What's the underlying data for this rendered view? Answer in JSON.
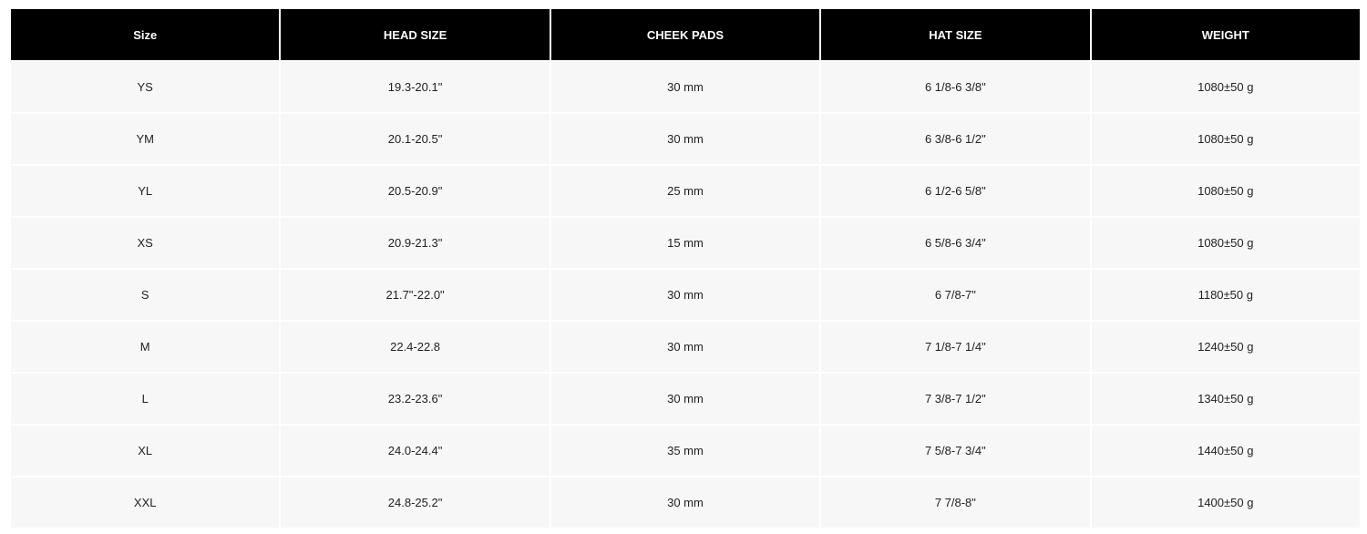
{
  "table": {
    "header": [
      "Size",
      "HEAD SIZE",
      "CHEEK PADS",
      "HAT SIZE",
      "WEIGHT"
    ],
    "rows": [
      [
        "YS",
        "19.3-20.1\"",
        "30 mm",
        "6 1/8-6 3/8\"",
        "1080±50 g"
      ],
      [
        "YM",
        "20.1-20.5\"",
        "30 mm",
        "6 3/8-6 1/2\"",
        "1080±50 g"
      ],
      [
        "YL",
        "20.5-20.9\"",
        "25 mm",
        "6 1/2-6 5/8\"",
        "1080±50 g"
      ],
      [
        "XS",
        "20.9-21.3\"",
        "15 mm",
        "6 5/8-6 3/4\"",
        "1080±50 g"
      ],
      [
        "S",
        "21.7\"-22.0\"",
        "30 mm",
        "6 7/8-7\"",
        "1180±50 g"
      ],
      [
        "M",
        "22.4-22.8",
        "30 mm",
        "7 1/8-7 1/4\"",
        "1240±50 g"
      ],
      [
        "L",
        "23.2-23.6\"",
        "30 mm",
        "7 3/8-7 1/2\"",
        "1340±50 g"
      ],
      [
        "XL",
        "24.0-24.4\"",
        "35 mm",
        "7 5/8-7 3/4\"",
        "1440±50 g"
      ],
      [
        "XXL",
        "24.8-25.2\"",
        "30 mm",
        "7 7/8-8\"",
        "1400±50 g"
      ]
    ]
  }
}
